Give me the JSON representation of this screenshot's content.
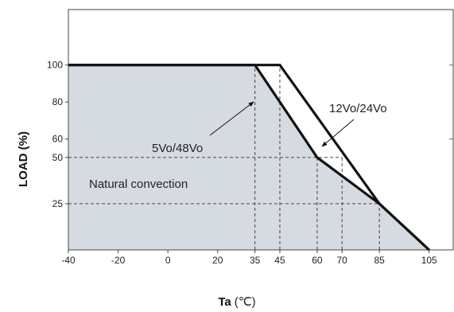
{
  "chart_data": {
    "type": "line",
    "xlabel": "Ta",
    "xlabel_unit": "(℃)",
    "ylabel": "LOAD (%)",
    "xlim": [
      -40,
      115
    ],
    "ylim": [
      0,
      130
    ],
    "x_ticks": [
      -40,
      -20,
      0,
      20,
      35,
      45,
      60,
      70,
      85,
      105
    ],
    "y_ticks": [
      25,
      50,
      60,
      80,
      100
    ],
    "shaded_region_note": "Natural convection",
    "series": [
      {
        "name": "5Vo/48Vo",
        "points": [
          [
            -40,
            100
          ],
          [
            35,
            100
          ],
          [
            60,
            50
          ],
          [
            85,
            25
          ],
          [
            105,
            0
          ]
        ]
      },
      {
        "name": "12Vo/24Vo",
        "points": [
          [
            -40,
            100
          ],
          [
            45,
            100
          ],
          [
            85,
            25
          ],
          [
            105,
            0
          ]
        ]
      }
    ],
    "guide_lines": {
      "vertical": [
        [
          35,
          100
        ],
        [
          45,
          100
        ],
        [
          60,
          50
        ],
        [
          70,
          50
        ],
        [
          85,
          25
        ]
      ],
      "horizontal": [
        [
          50,
          70
        ],
        [
          25,
          85
        ]
      ]
    },
    "colors": {
      "fill": "#d5dbe1",
      "line": "#111111",
      "frame": "#444444"
    }
  }
}
